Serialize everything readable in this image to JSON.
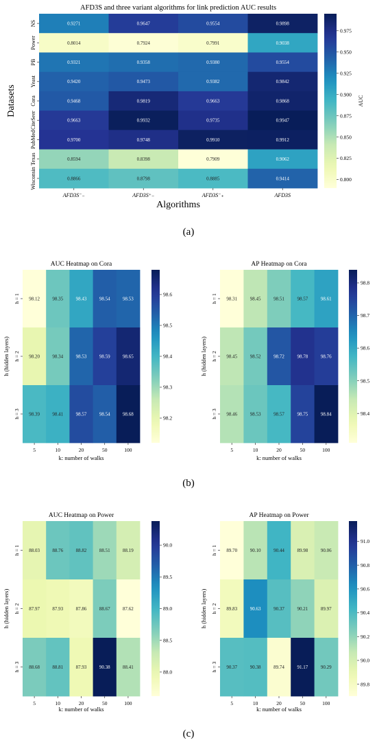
{
  "panel_labels": [
    "(a)",
    "(b)",
    "(c)"
  ],
  "chart_data": [
    {
      "id": "a",
      "type": "heatmap",
      "title": "AFD3S and three variant algorithms for link prediction AUC results",
      "xlabel": "Algorithms",
      "ylabel": "Datasets",
      "colorbar_label": "AUC",
      "x_ticks": [
        "AFD3S⁻₋",
        "AFD3S⁺₋",
        "AFD3S⁻₊",
        "AFD3S"
      ],
      "y_ticks": [
        "NS",
        "Power",
        "PB",
        "Yeast",
        "Cora",
        "CiteSeer",
        "PubMed",
        "Texas",
        "Wisconsin"
      ],
      "values": [
        [
          0.9271,
          0.9647,
          0.9554,
          0.9898
        ],
        [
          0.8014,
          0.7924,
          0.7991,
          0.9038
        ],
        [
          0.9321,
          0.9358,
          0.938,
          0.9554
        ],
        [
          0.942,
          0.9473,
          0.9382,
          0.9842
        ],
        [
          0.9468,
          0.9819,
          0.9663,
          0.9868
        ],
        [
          0.9663,
          0.9932,
          0.9735,
          0.9947
        ],
        [
          0.97,
          0.9748,
          0.991,
          0.9912
        ],
        [
          0.8594,
          0.8398,
          0.7909,
          0.9062
        ],
        [
          0.8866,
          0.8798,
          0.8885,
          0.9414
        ]
      ],
      "value_labels": [
        [
          "0.9271",
          "0.9647",
          "0.9554",
          "0.9898"
        ],
        [
          "0.8014",
          "0.7924",
          "0.7991",
          "0.9038"
        ],
        [
          "0.9321",
          "0.9358",
          "0.9380",
          "0.9554"
        ],
        [
          "0.9420",
          "0.9473",
          "0.9382",
          "0.9842"
        ],
        [
          "0.9468",
          "0.9819",
          "0.9663",
          "0.9868"
        ],
        [
          "0.9663",
          "0.9932",
          "0.9735",
          "0.9947"
        ],
        [
          "0.9700",
          "0.9748",
          "0.9910",
          "0.9912"
        ],
        [
          "0.8594",
          "0.8398",
          "0.7909",
          "0.9062"
        ],
        [
          "0.8866",
          "0.8798",
          "0.8885",
          "0.9414"
        ]
      ],
      "vmin": 0.79,
      "vmax": 0.995,
      "colorbar_ticks": [
        "0.800",
        "0.825",
        "0.850",
        "0.875",
        "0.900",
        "0.925",
        "0.950",
        "0.975"
      ],
      "colorbar_tick_values": [
        0.8,
        0.825,
        0.85,
        0.875,
        0.9,
        0.925,
        0.95,
        0.975
      ],
      "colormap": "YlGnBu"
    },
    {
      "id": "b1",
      "type": "heatmap",
      "title": "AUC Heatmap on Cora",
      "xlabel": "k: number of walks",
      "ylabel": "h (hidden layers)",
      "x_ticks": [
        "5",
        "10",
        "20",
        "50",
        "100"
      ],
      "y_ticks": [
        "h = 1",
        "h = 2",
        "h = 3"
      ],
      "values": [
        [
          98.12,
          98.35,
          98.43,
          98.54,
          98.53
        ],
        [
          98.2,
          98.34,
          98.53,
          98.59,
          98.65
        ],
        [
          98.39,
          98.41,
          98.57,
          98.54,
          98.68
        ]
      ],
      "value_labels": [
        [
          "98.12",
          "98.35",
          "98.43",
          "98.54",
          "98.53"
        ],
        [
          "98.20",
          "98.34",
          "98.53",
          "98.59",
          "98.65"
        ],
        [
          "98.39",
          "98.41",
          "98.57",
          "98.54",
          "98.68"
        ]
      ],
      "vmin": 98.12,
      "vmax": 98.68,
      "colorbar_ticks": [
        "98.2",
        "98.3",
        "98.4",
        "98.5",
        "98.6"
      ],
      "colorbar_tick_values": [
        98.2,
        98.3,
        98.4,
        98.5,
        98.6
      ],
      "colormap": "YlGnBu"
    },
    {
      "id": "b2",
      "type": "heatmap",
      "title": "AP Heatmap on Cora",
      "xlabel": "k: number of walks",
      "ylabel": "h (hidden layers)",
      "x_ticks": [
        "5",
        "10",
        "20",
        "50",
        "100"
      ],
      "y_ticks": [
        "h = 1",
        "h = 2",
        "h = 3"
      ],
      "values": [
        [
          98.31,
          98.45,
          98.51,
          98.57,
          98.61
        ],
        [
          98.45,
          98.52,
          98.72,
          98.78,
          98.76
        ],
        [
          98.46,
          98.53,
          98.57,
          98.75,
          98.84
        ]
      ],
      "value_labels": [
        [
          "98.31",
          "98.45",
          "98.51",
          "98.57",
          "98.61"
        ],
        [
          "98.45",
          "98.52",
          "98.72",
          "98.78",
          "98.76"
        ],
        [
          "98.46",
          "98.53",
          "98.57",
          "98.75",
          "98.84"
        ]
      ],
      "vmin": 98.31,
      "vmax": 98.84,
      "colorbar_ticks": [
        "98.4",
        "98.5",
        "98.6",
        "98.7",
        "98.8"
      ],
      "colorbar_tick_values": [
        98.4,
        98.5,
        98.6,
        98.7,
        98.8
      ],
      "colormap": "YlGnBu"
    },
    {
      "id": "c1",
      "type": "heatmap",
      "title": "AUC Heatmap on Power",
      "xlabel": "k: number of walks",
      "ylabel": "h (hidden layers)",
      "x_ticks": [
        "5",
        "10",
        "20",
        "50",
        "100"
      ],
      "y_ticks": [
        "h = 1",
        "h = 2",
        "h = 3"
      ],
      "values": [
        [
          88.03,
          88.76,
          88.82,
          88.51,
          88.19
        ],
        [
          87.97,
          87.93,
          87.86,
          88.67,
          87.62
        ],
        [
          88.68,
          88.81,
          87.93,
          90.38,
          88.41
        ]
      ],
      "value_labels": [
        [
          "88.03",
          "88.76",
          "88.82",
          "88.51",
          "88.19"
        ],
        [
          "87.97",
          "87.93",
          "87.86",
          "88.67",
          "87.62"
        ],
        [
          "88.68",
          "88.81",
          "87.93",
          "90.38",
          "88.41"
        ]
      ],
      "vmin": 87.62,
      "vmax": 90.38,
      "colorbar_ticks": [
        "88.0",
        "88.5",
        "89.0",
        "89.5",
        "90.0"
      ],
      "colorbar_tick_values": [
        88.0,
        88.5,
        89.0,
        89.5,
        90.0
      ],
      "colormap": "YlGnBu"
    },
    {
      "id": "c2",
      "type": "heatmap",
      "title": "AP Heatmap on Power",
      "xlabel": "k: number of walks",
      "ylabel": "h (hidden layers)",
      "x_ticks": [
        "5",
        "10",
        "20",
        "50",
        "100"
      ],
      "y_ticks": [
        "h = 1",
        "h = 2",
        "h = 3"
      ],
      "values": [
        [
          89.7,
          90.1,
          90.44,
          89.98,
          90.06
        ],
        [
          89.83,
          90.63,
          90.37,
          90.21,
          89.97
        ],
        [
          90.37,
          90.38,
          89.74,
          91.17,
          90.29
        ]
      ],
      "value_labels": [
        [
          "89.70",
          "90.10",
          "90.44",
          "89.98",
          "90.06"
        ],
        [
          "89.83",
          "90.63",
          "90.37",
          "90.21",
          "89.97"
        ],
        [
          "90.37",
          "90.38",
          "89.74",
          "91.17",
          "90.29"
        ]
      ],
      "vmin": 89.7,
      "vmax": 91.17,
      "colorbar_ticks": [
        "89.8",
        "90.0",
        "90.2",
        "90.4",
        "90.6",
        "90.8",
        "91.0"
      ],
      "colorbar_tick_values": [
        89.8,
        90.0,
        90.2,
        90.4,
        90.6,
        90.8,
        91.0
      ],
      "colormap": "YlGnBu"
    }
  ]
}
